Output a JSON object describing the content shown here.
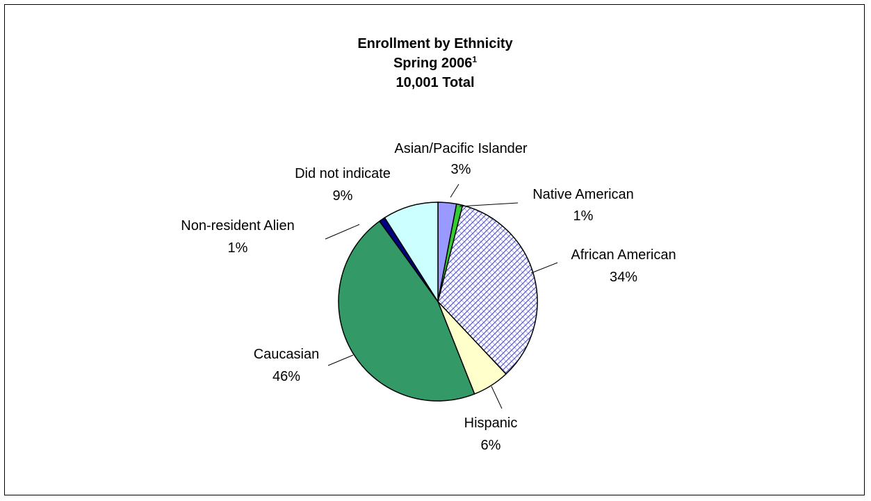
{
  "chart_data": {
    "type": "pie",
    "title": "Enrollment by Ethnicity",
    "subtitle_main": "Spring 2006",
    "subtitle_superscript": "1",
    "total_label": "10,001 Total",
    "categories": [
      "Asian/Pacific Islander",
      "Native American",
      "African American",
      "Hispanic",
      "Caucasian",
      "Non-resident Alien",
      "Did not indicate"
    ],
    "values": [
      3,
      1,
      34,
      6,
      46,
      1,
      9
    ],
    "value_labels": [
      "3%",
      "1%",
      "34%",
      "6%",
      "46%",
      "1%",
      "9%"
    ],
    "legend": "none",
    "colors": [
      "#9999ff",
      "#33cc33",
      "#cfd3f7",
      "#ffffcc",
      "#339966",
      "#000080",
      "#ccffff"
    ],
    "patterns": [
      "solid",
      "solid",
      "crosshatch",
      "solid",
      "solid",
      "solid",
      "solid"
    ]
  }
}
